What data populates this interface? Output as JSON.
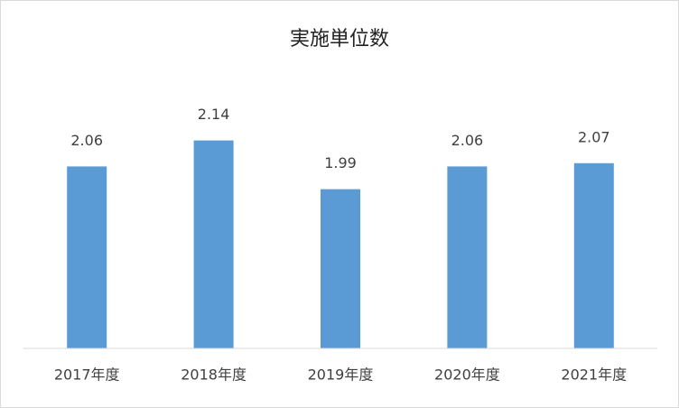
{
  "chart_data": {
    "type": "bar",
    "title": "実施単位数",
    "categories": [
      "2017年度",
      "2018年度",
      "2019年度",
      "2020年度",
      "2021年度"
    ],
    "values": [
      2.06,
      2.14,
      1.99,
      2.06,
      2.07
    ],
    "color": "#5b9bd5",
    "ylim": [
      1.5,
      2.3
    ]
  }
}
